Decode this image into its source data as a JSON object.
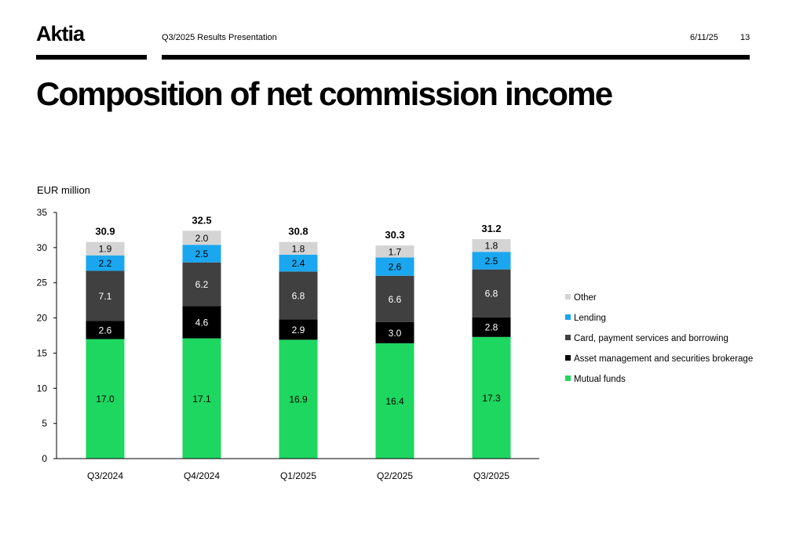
{
  "header": {
    "logo": "Aktia",
    "presentation": "Q3/2025 Results Presentation",
    "date": "6/11/25",
    "page": "13"
  },
  "page_title": "Composition of net commission income",
  "chart_data": {
    "type": "bar",
    "stacked": true,
    "ylabel": "EUR million",
    "ylim": [
      0,
      35
    ],
    "yticks": [
      0,
      5,
      10,
      15,
      20,
      25,
      30,
      35
    ],
    "grid": false,
    "legend_position": "right",
    "categories": [
      "Q3/2024",
      "Q4/2024",
      "Q1/2025",
      "Q2/2025",
      "Q3/2025"
    ],
    "totals": [
      "30.9",
      "32.5",
      "30.8",
      "30.3",
      "31.2"
    ],
    "series": [
      {
        "name": "Mutual funds",
        "color": "#1ed760",
        "label_color": "#000000",
        "values": [
          17.0,
          17.1,
          16.9,
          16.4,
          17.3
        ],
        "labels": [
          "17.0",
          "17.1",
          "16.9",
          "16.4",
          "17.3"
        ]
      },
      {
        "name": "Asset management and securities brokerage",
        "color": "#000000",
        "label_color": "#ffffff",
        "values": [
          2.6,
          4.6,
          2.9,
          3.0,
          2.8
        ],
        "labels": [
          "2.6",
          "4.6",
          "2.9",
          "3.0",
          "2.8"
        ]
      },
      {
        "name": "Card, payment services and borrowing",
        "color": "#404040",
        "label_color": "#ffffff",
        "values": [
          7.1,
          6.2,
          6.8,
          6.6,
          6.8
        ],
        "labels": [
          "7.1",
          "6.2",
          "6.8",
          "6.6",
          "6.8"
        ]
      },
      {
        "name": "Lending",
        "color": "#1aa7f0",
        "label_color": "#000000",
        "values": [
          2.2,
          2.5,
          2.4,
          2.6,
          2.5
        ],
        "labels": [
          "2.2",
          "2.5",
          "2.4",
          "2.6",
          "2.5"
        ]
      },
      {
        "name": "Other",
        "color": "#d4d4d4",
        "label_color": "#000000",
        "values": [
          1.9,
          2.0,
          1.8,
          1.7,
          1.8
        ],
        "labels": [
          "1.9",
          "2.0",
          "1.8",
          "1.7",
          "1.8"
        ]
      }
    ]
  }
}
